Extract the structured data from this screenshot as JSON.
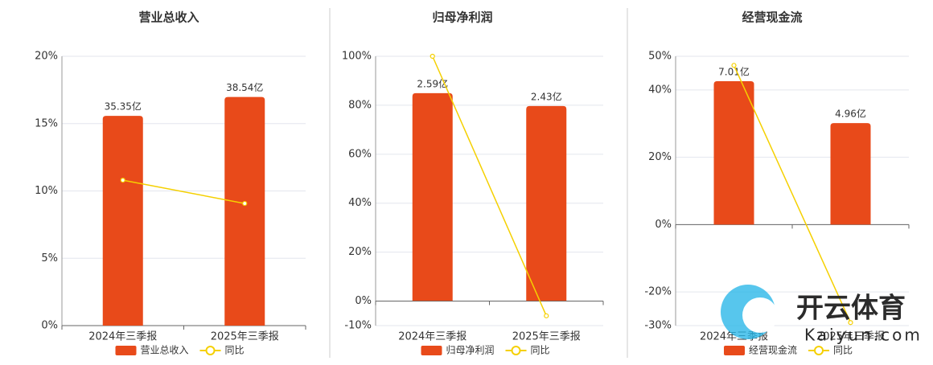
{
  "chart_data": [
    {
      "type": "bar",
      "title": "营业总收入",
      "categories": [
        "2024年三季报",
        "2025年三季报"
      ],
      "ylim": [
        0,
        20
      ],
      "yticks": [
        {
          "value": 0,
          "label": "0%"
        },
        {
          "value": 5,
          "label": "5%"
        },
        {
          "value": 10,
          "label": "10%"
        },
        {
          "value": 15,
          "label": "15%"
        },
        {
          "value": 20,
          "label": "20%"
        }
      ],
      "y2lim": [
        0,
        45.4
      ],
      "grid": true,
      "series": [
        {
          "name": "营业总收入",
          "type": "bar",
          "axis": "y2",
          "color": "#e84a1a",
          "values": [
            35.35,
            38.54
          ],
          "value_labels": [
            "35.35亿",
            "38.54亿"
          ]
        },
        {
          "name": "同比",
          "type": "line",
          "axis": "y",
          "color": "#f5d000",
          "values": [
            10.8,
            9.07
          ]
        }
      ]
    },
    {
      "type": "bar",
      "title": "归母净利润",
      "categories": [
        "2024年三季报",
        "2025年三季报"
      ],
      "ylim": [
        -10,
        100
      ],
      "yticks": [
        {
          "value": -10,
          "label": "-10%"
        },
        {
          "value": 0,
          "label": "0%"
        },
        {
          "value": 20,
          "label": "20%"
        },
        {
          "value": 40,
          "label": "40%"
        },
        {
          "value": 60,
          "label": "60%"
        },
        {
          "value": 80,
          "label": "80%"
        },
        {
          "value": 100,
          "label": "100%"
        }
      ],
      "y2lim": [
        -0.31,
        3.05
      ],
      "grid": true,
      "series": [
        {
          "name": "归母净利润",
          "type": "bar",
          "axis": "y2",
          "color": "#e84a1a",
          "values": [
            2.59,
            2.43
          ],
          "value_labels": [
            "2.59亿",
            "2.43亿"
          ]
        },
        {
          "name": "同比",
          "type": "line",
          "axis": "y",
          "color": "#f5d000",
          "values": [
            100,
            -6
          ]
        }
      ]
    },
    {
      "type": "bar",
      "title": "经营现金流",
      "categories": [
        "2024年三季报",
        "2025年三季报"
      ],
      "ylim": [
        -30,
        50
      ],
      "yticks": [
        {
          "value": -30,
          "label": "-30%"
        },
        {
          "value": -20,
          "label": "-20%"
        },
        {
          "value": 0,
          "label": "0%"
        },
        {
          "value": 20,
          "label": "20%"
        },
        {
          "value": 40,
          "label": "40%"
        },
        {
          "value": 50,
          "label": "50%"
        }
      ],
      "y2lim": [
        -4.94,
        8.23
      ],
      "grid": true,
      "series": [
        {
          "name": "经营现金流",
          "type": "bar",
          "axis": "y2",
          "color": "#e84a1a",
          "values": [
            7.01,
            4.96
          ],
          "value_labels": [
            "7.01亿",
            "4.96亿"
          ]
        },
        {
          "name": "同比",
          "type": "line",
          "axis": "y",
          "color": "#f5d000",
          "values": [
            47.3,
            -29.1
          ]
        }
      ]
    }
  ],
  "watermark": {
    "brand": "开云体育",
    "site": "Kaiyun.com"
  }
}
